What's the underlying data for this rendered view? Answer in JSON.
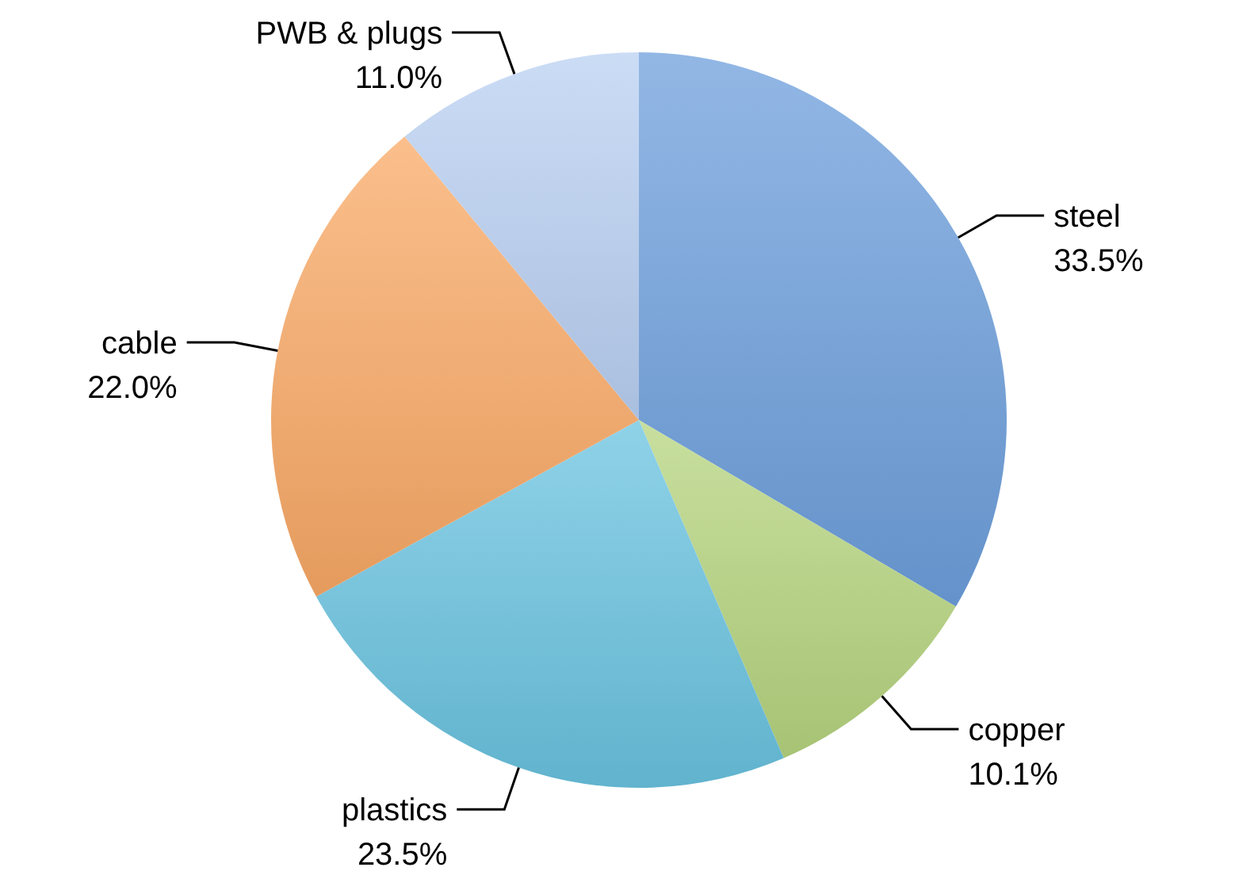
{
  "chart_data": {
    "type": "pie",
    "categories": [
      "steel",
      "copper",
      "plastics",
      "cable",
      "PWB & plugs"
    ],
    "values": [
      33.5,
      10.1,
      23.5,
      22.0,
      11.0
    ],
    "value_labels": [
      "33.5%",
      "10.1%",
      "23.5%",
      "22.0%",
      "11.0%"
    ],
    "colors": [
      "#6d9fdc",
      "#b5d47e",
      "#69c3e0",
      "#f9a965",
      "#b9d0f2"
    ]
  }
}
